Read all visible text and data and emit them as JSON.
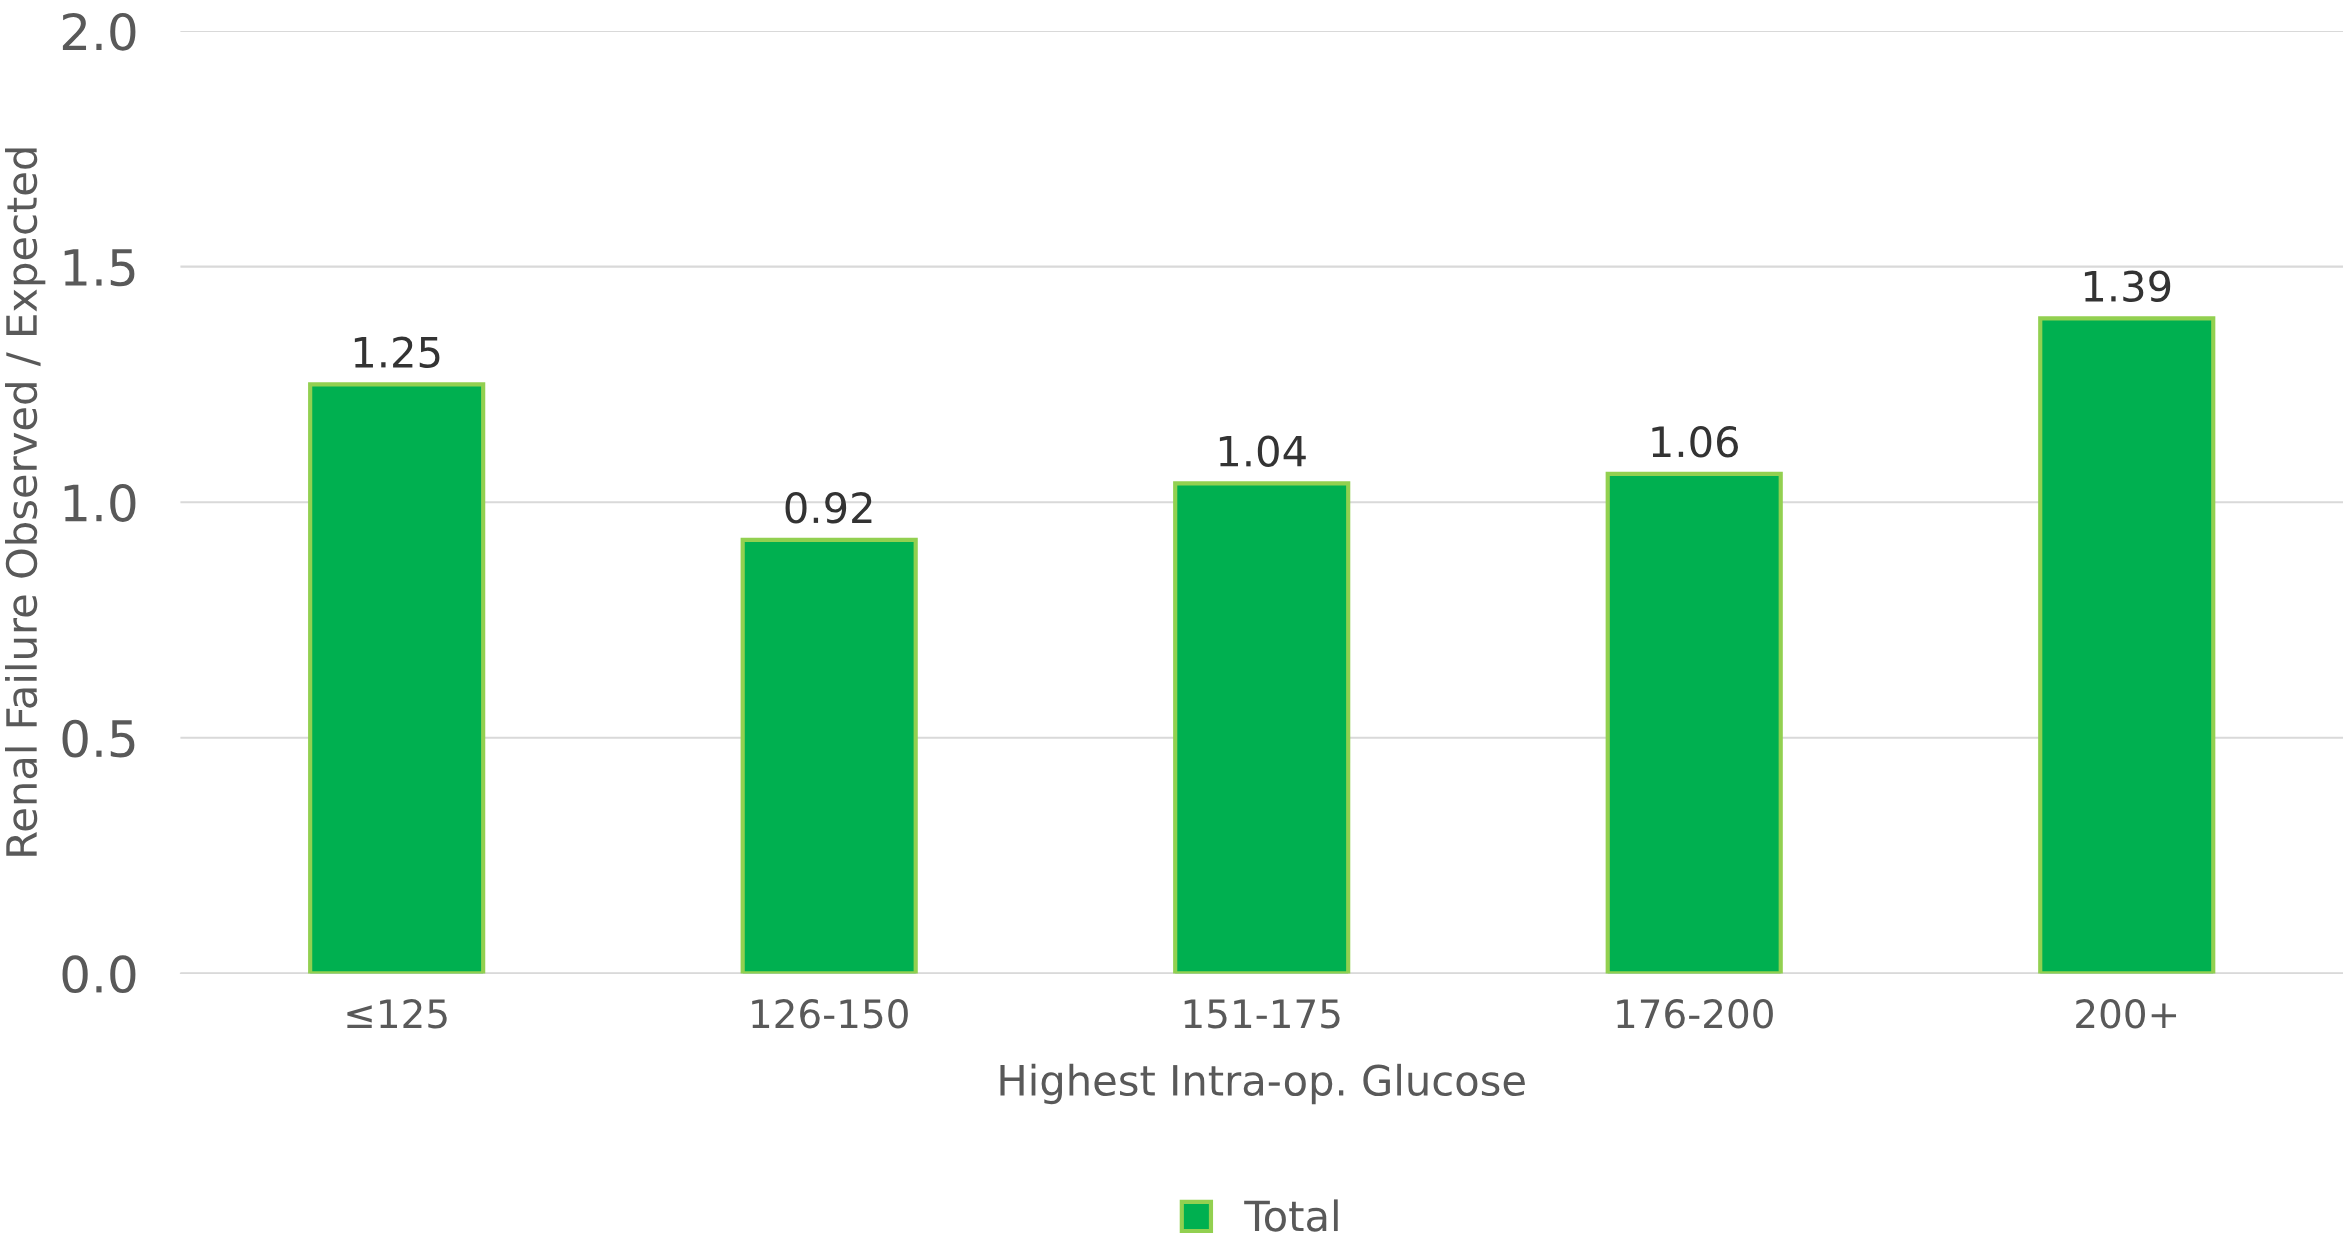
{
  "chart_data": {
    "type": "bar",
    "categories": [
      "≤125",
      "126-150",
      "151-175",
      "176-200",
      "200+"
    ],
    "series": [
      {
        "name": "Total",
        "color": "#00b050",
        "values": [
          1.25,
          0.92,
          1.04,
          1.06,
          1.39
        ]
      }
    ],
    "xlabel": "Highest Intra-op. Glucose",
    "ylabel": "Renal Failure Observed / Expected",
    "ylim": [
      0,
      2.0
    ],
    "yticks": [
      {
        "value": 0,
        "label": "0.0"
      },
      {
        "value": 0.5,
        "label": "0.5"
      },
      {
        "value": 1.0,
        "label": "1.0"
      },
      {
        "value": 1.5,
        "label": "1.5"
      },
      {
        "value": 2.0,
        "label": "2.0"
      }
    ],
    "grid": "y",
    "legend": "bottom",
    "data_labels": true
  }
}
